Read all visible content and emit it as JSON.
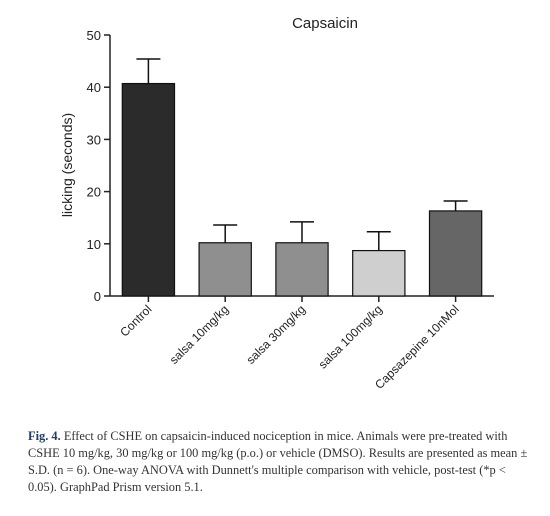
{
  "chart_data": {
    "type": "bar",
    "title": "Capsaicin",
    "xlabel": "",
    "ylabel": "licking (seconds)",
    "ylim": [
      0,
      50
    ],
    "yticks": [
      0,
      10,
      20,
      30,
      40,
      50
    ],
    "categories": [
      "Control",
      "salsa 10mg/kg",
      "salsa 30mg/kg",
      "salsa 100mg/kg",
      "Capsazepine 10nMol"
    ],
    "values": [
      40.7,
      10.2,
      10.2,
      8.7,
      16.3
    ],
    "errors": [
      4.7,
      3.4,
      4.0,
      3.6,
      1.9
    ],
    "colors": [
      "#2b2b2b",
      "#8f8f8f",
      "#8f8f8f",
      "#cfcfcf",
      "#666666"
    ]
  },
  "caption": {
    "label": "Fig. 4.",
    "text": "Effect of CSHE on capsaicin-induced nociception in mice. Animals were pre-treated with CSHE 10 mg/kg, 30 mg/kg or 100 mg/kg (p.o.) or vehicle (DMSO). Results are presented as mean ± S.D. (n = 6). One-way ANOVA with Dunnett's multiple comparison with vehicle, post-test (*p < 0.05). GraphPad Prism version 5.1."
  }
}
